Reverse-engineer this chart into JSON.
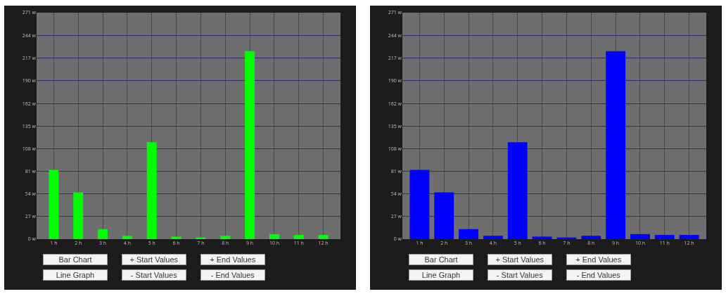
{
  "chart_data": [
    {
      "type": "bar",
      "categories": [
        "1 h",
        "2 h",
        "3 h",
        "4 h",
        "5 h",
        "6 h",
        "7 h",
        "8 h",
        "9 h",
        "10 h",
        "11 h",
        "12 h"
      ],
      "series": [
        {
          "color": "#00ff00",
          "values": [
            83,
            56,
            12,
            4,
            116,
            3,
            2,
            4,
            225,
            6,
            5,
            5
          ]
        }
      ],
      "ylim": [
        0,
        271
      ],
      "yticks": [
        {
          "value": 0,
          "label": "0 w"
        },
        {
          "value": 27,
          "label": "27 w"
        },
        {
          "value": 54,
          "label": "54 w"
        },
        {
          "value": 81,
          "label": "81 w"
        },
        {
          "value": 108,
          "label": "108 w"
        },
        {
          "value": 135,
          "label": "135 w"
        },
        {
          "value": 162,
          "label": "162 w"
        },
        {
          "value": 190,
          "label": "190 w"
        },
        {
          "value": 217,
          "label": "217 w"
        },
        {
          "value": 244,
          "label": "244 w"
        },
        {
          "value": 271,
          "label": "271 w"
        }
      ],
      "grid": true,
      "annotations": [
        "Bar Chart",
        "+ Start Values",
        "+ End Values",
        "Line Graph",
        "- Start Values",
        "- End Values"
      ]
    },
    {
      "type": "bar",
      "categories": [
        "1 h",
        "2 h",
        "3 h",
        "4 h",
        "5 h",
        "6 h",
        "7 h",
        "8 h",
        "9 h",
        "10 h",
        "11 h",
        "12 h"
      ],
      "series": [
        {
          "color": "#0000ff",
          "values": [
            83,
            56,
            12,
            4,
            116,
            3,
            2,
            4,
            225,
            6,
            5,
            5
          ]
        }
      ],
      "ylim": [
        0,
        271
      ],
      "yticks": [
        {
          "value": 0,
          "label": "0 w"
        },
        {
          "value": 27,
          "label": "27 w"
        },
        {
          "value": 54,
          "label": "54 w"
        },
        {
          "value": 81,
          "label": "81 w"
        },
        {
          "value": 108,
          "label": "108 w"
        },
        {
          "value": 135,
          "label": "135 w"
        },
        {
          "value": 162,
          "label": "162 w"
        },
        {
          "value": 190,
          "label": "190 w"
        },
        {
          "value": 217,
          "label": "217 w"
        },
        {
          "value": 244,
          "label": "244 w"
        },
        {
          "value": 271,
          "label": "271 w"
        }
      ],
      "grid": true,
      "annotations": [
        "Bar Chart",
        "+ Start Values",
        "+ End Values",
        "Line Graph",
        "- Start Values",
        "- End Values"
      ]
    }
  ]
}
